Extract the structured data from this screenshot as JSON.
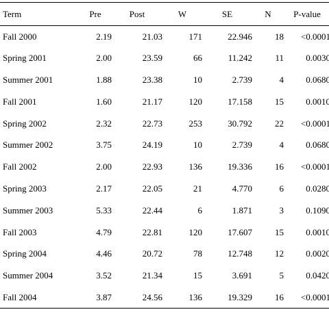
{
  "table": {
    "headers": {
      "term": "Term",
      "pre": "Pre",
      "post": "Post",
      "w": "W",
      "se": "SE",
      "n": "N",
      "p": "P-value"
    },
    "rows": [
      {
        "term": "Fall 2000",
        "pre": "2.19",
        "post": "21.03",
        "w": "171",
        "se": "22.946",
        "n": "18",
        "p": "<0.0001"
      },
      {
        "term": "Spring 2001",
        "pre": "2.00",
        "post": "23.59",
        "w": "66",
        "se": "11.242",
        "n": "11",
        "p": "0.0030"
      },
      {
        "term": "Summer 2001",
        "pre": "1.88",
        "post": "23.38",
        "w": "10",
        "se": "2.739",
        "n": "4",
        "p": "0.0680"
      },
      {
        "term": "Fall 2001",
        "pre": "1.60",
        "post": "21.17",
        "w": "120",
        "se": "17.158",
        "n": "15",
        "p": "0.0010"
      },
      {
        "term": "Spring 2002",
        "pre": "2.32",
        "post": "22.73",
        "w": "253",
        "se": "30.792",
        "n": "22",
        "p": "<0.0001"
      },
      {
        "term": "Summer 2002",
        "pre": "3.75",
        "post": "24.19",
        "w": "10",
        "se": "2.739",
        "n": "4",
        "p": "0.0680"
      },
      {
        "term": "Fall 2002",
        "pre": "2.00",
        "post": "22.93",
        "w": "136",
        "se": "19.336",
        "n": "16",
        "p": "<0.0001"
      },
      {
        "term": "Spring 2003",
        "pre": "2.17",
        "post": "22.05",
        "w": "21",
        "se": "4.770",
        "n": "6",
        "p": "0.0280"
      },
      {
        "term": "Summer 2003",
        "pre": "5.33",
        "post": "22.44",
        "w": "6",
        "se": "1.871",
        "n": "3",
        "p": "0.1090"
      },
      {
        "term": "Fall 2003",
        "pre": "4.79",
        "post": "22.81",
        "w": "120",
        "se": "17.607",
        "n": "15",
        "p": "0.0010"
      },
      {
        "term": "Spring 2004",
        "pre": "4.46",
        "post": "20.72",
        "w": "78",
        "se": "12.748",
        "n": "12",
        "p": "0.0020"
      },
      {
        "term": "Summer 2004",
        "pre": "3.52",
        "post": "21.34",
        "w": "15",
        "se": "3.691",
        "n": "5",
        "p": "0.0420"
      },
      {
        "term": "Fall 2004",
        "pre": "3.87",
        "post": "24.56",
        "w": "136",
        "se": "19.329",
        "n": "16",
        "p": "<0.0001"
      }
    ]
  }
}
